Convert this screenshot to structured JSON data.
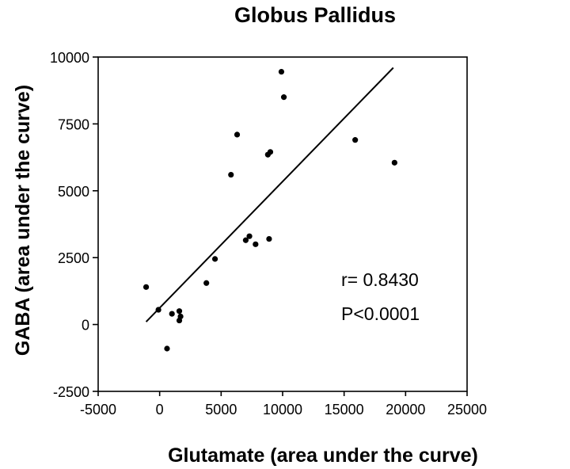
{
  "chart_data": {
    "type": "scatter",
    "title": "Globus Pallidus",
    "xlabel": "Glutamate (area under the curve)",
    "ylabel": "GABA (area under the curve)",
    "xlim": [
      -5000,
      25000
    ],
    "ylim": [
      -2500,
      10000
    ],
    "xticks": [
      -5000,
      0,
      5000,
      10000,
      15000,
      20000,
      25000
    ],
    "yticks": [
      -2500,
      0,
      2500,
      5000,
      7500,
      10000
    ],
    "grid": false,
    "points": [
      {
        "x": -1100,
        "y": 1400
      },
      {
        "x": -100,
        "y": 550
      },
      {
        "x": 1000,
        "y": 400
      },
      {
        "x": 600,
        "y": -900
      },
      {
        "x": 1600,
        "y": 500
      },
      {
        "x": 1700,
        "y": 300
      },
      {
        "x": 1600,
        "y": 150
      },
      {
        "x": 3800,
        "y": 1550
      },
      {
        "x": 4500,
        "y": 2450
      },
      {
        "x": 5800,
        "y": 5600
      },
      {
        "x": 6300,
        "y": 7100
      },
      {
        "x": 7000,
        "y": 3150
      },
      {
        "x": 7300,
        "y": 3300
      },
      {
        "x": 7800,
        "y": 3000
      },
      {
        "x": 8800,
        "y": 6350
      },
      {
        "x": 9000,
        "y": 6450
      },
      {
        "x": 8900,
        "y": 3200
      },
      {
        "x": 9900,
        "y": 9450
      },
      {
        "x": 10100,
        "y": 8500
      },
      {
        "x": 15900,
        "y": 6900
      },
      {
        "x": 19100,
        "y": 6050
      }
    ],
    "fit_line": {
      "x1": -1100,
      "y1": 100,
      "x2": 19000,
      "y2": 9600
    },
    "annotations": [
      "r= 0.8430",
      "P<0.0001"
    ]
  }
}
